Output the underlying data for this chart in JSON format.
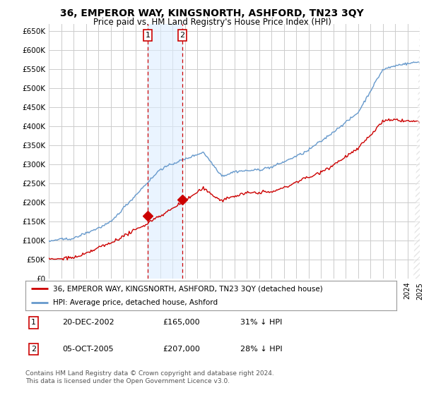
{
  "title": "36, EMPEROR WAY, KINGSNORTH, ASHFORD, TN23 3QY",
  "subtitle": "Price paid vs. HM Land Registry's House Price Index (HPI)",
  "title_fontsize": 10,
  "subtitle_fontsize": 8.5,
  "ylabel_ticks": [
    "£0",
    "£50K",
    "£100K",
    "£150K",
    "£200K",
    "£250K",
    "£300K",
    "£350K",
    "£400K",
    "£450K",
    "£500K",
    "£550K",
    "£600K",
    "£650K"
  ],
  "ytick_vals": [
    0,
    50000,
    100000,
    150000,
    200000,
    250000,
    300000,
    350000,
    400000,
    450000,
    500000,
    550000,
    600000,
    650000
  ],
  "ylim": [
    0,
    670000
  ],
  "sale1_date": "20-DEC-2002",
  "sale1_price": 165000,
  "sale1_pct": "31% ↓ HPI",
  "sale1_label": "1",
  "sale1_x": 2003.0,
  "sale2_date": "05-OCT-2005",
  "sale2_price": 207000,
  "sale2_label": "2",
  "sale2_x": 2005.8,
  "sale2_pct": "28% ↓ HPI",
  "legend_property": "36, EMPEROR WAY, KINGSNORTH, ASHFORD, TN23 3QY (detached house)",
  "legend_hpi": "HPI: Average price, detached house, Ashford",
  "footer": "Contains HM Land Registry data © Crown copyright and database right 2024.\nThis data is licensed under the Open Government Licence v3.0.",
  "property_color": "#cc0000",
  "hpi_color": "#6699cc",
  "shade_color": "#ddeeff",
  "xmin": 1995,
  "xmax": 2025,
  "background_color": "#ffffff",
  "grid_color": "#cccccc"
}
